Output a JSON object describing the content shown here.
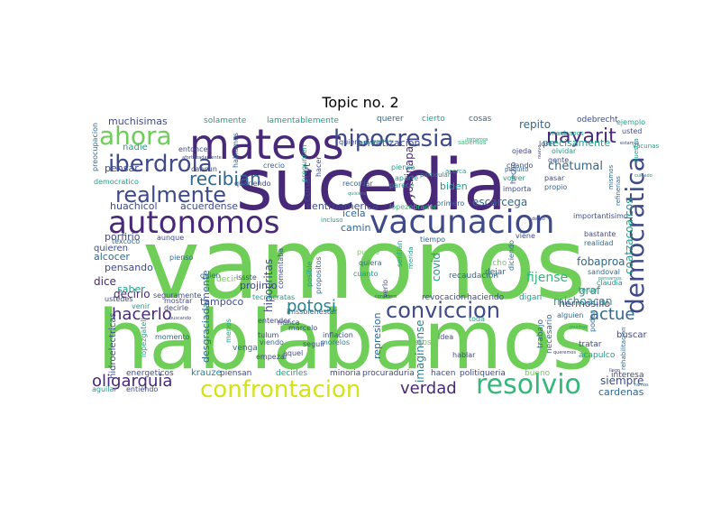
{
  "title": "Topic no. 2",
  "palette": [
    "#440154",
    "#482878",
    "#3e4a89",
    "#31688e",
    "#26828e",
    "#1f9e89",
    "#35b779",
    "#6ece58",
    "#b5de2b",
    "#d4e21a"
  ],
  "words": [
    {
      "text": "vamonos",
      "c": 7
    },
    {
      "text": "hablabamos",
      "c": 7
    },
    {
      "text": "sucedia",
      "c": 1
    },
    {
      "text": "autonomos",
      "c": 1
    },
    {
      "text": "vacunacion",
      "c": 2
    },
    {
      "text": "mateos",
      "c": 1
    },
    {
      "text": "realmente",
      "c": 2
    },
    {
      "text": "ahora",
      "c": 7
    },
    {
      "text": "hipocresia",
      "c": 2
    },
    {
      "text": "iberdrola",
      "c": 2
    },
    {
      "text": "nayarit",
      "c": 1
    },
    {
      "text": "democratica",
      "c": 2
    },
    {
      "text": "confrontacion",
      "c": 9
    },
    {
      "text": "resolvio",
      "c": 6
    },
    {
      "text": "conviccion",
      "c": 2
    },
    {
      "text": "oligarquia",
      "c": 1
    },
    {
      "text": "hacerlo",
      "c": 1
    },
    {
      "text": "potosi",
      "c": 4
    },
    {
      "text": "verdad",
      "c": 1
    },
    {
      "text": "actue",
      "c": 3
    },
    {
      "text": "recibian",
      "c": 3
    },
    {
      "text": "muchisimas",
      "c": 2
    },
    {
      "text": "solamente",
      "c": 5
    },
    {
      "text": "lamentablemente",
      "c": 5
    },
    {
      "text": "querer",
      "c": 3
    },
    {
      "text": "cierto",
      "c": 5
    },
    {
      "text": "cosas",
      "c": 3
    },
    {
      "text": "repito",
      "c": 3
    },
    {
      "text": "odebrecht",
      "c": 2
    },
    {
      "text": "ejemplo",
      "c": 5
    },
    {
      "text": "usted",
      "c": 2
    },
    {
      "text": "privatizacion",
      "c": 2
    },
    {
      "text": "precisamente",
      "c": 5
    },
    {
      "text": "chetumal",
      "c": 3
    },
    {
      "text": "conacyt",
      "c": 2
    },
    {
      "text": "ayotzinapa",
      "c": 1
    },
    {
      "text": "biden",
      "c": 5
    },
    {
      "text": "centroamerica",
      "c": 2
    },
    {
      "text": "escarcega",
      "c": 3
    },
    {
      "text": "coatzacoalcos",
      "c": 5
    },
    {
      "text": "icela",
      "c": 3
    },
    {
      "text": "camin",
      "c": 3
    },
    {
      "text": "huachicol",
      "c": 2
    },
    {
      "text": "acuerdense",
      "c": 2
    },
    {
      "text": "pensar",
      "c": 2
    },
    {
      "text": "nadie",
      "c": 5
    },
    {
      "text": "porfirio",
      "c": 2
    },
    {
      "text": "alcocer",
      "c": 3
    },
    {
      "text": "quieren",
      "c": 2
    },
    {
      "text": "pensando",
      "c": 2
    },
    {
      "text": "dice",
      "c": 1
    },
    {
      "text": "decirlo",
      "c": 1
    },
    {
      "text": "saber",
      "c": 5
    },
    {
      "text": "projimo",
      "c": 2
    },
    {
      "text": "tampoco",
      "c": 2
    },
    {
      "text": "hipocritas",
      "c": 2
    },
    {
      "text": "desgraciadamente",
      "c": 3
    },
    {
      "text": "represion",
      "c": 3
    },
    {
      "text": "covid",
      "c": 5
    },
    {
      "text": "fijense",
      "c": 6
    },
    {
      "text": "fobaproa",
      "c": 3
    },
    {
      "text": "graf",
      "c": 5
    },
    {
      "text": "michoacan",
      "c": 5
    },
    {
      "text": "hermosillo",
      "c": 2
    },
    {
      "text": "siempre",
      "c": 2
    },
    {
      "text": "cardenas",
      "c": 3
    },
    {
      "text": "interesa",
      "c": 2
    },
    {
      "text": "imaginense",
      "c": 4
    },
    {
      "text": "hidroelectricas",
      "c": 2
    },
    {
      "text": "energeticos",
      "c": 2
    },
    {
      "text": "krauze",
      "c": 4
    },
    {
      "text": "piensan",
      "c": 2
    },
    {
      "text": "decirles",
      "c": 5
    },
    {
      "text": "minoria",
      "c": 2
    },
    {
      "text": "procuraduria",
      "c": 2
    },
    {
      "text": "hacen",
      "c": 2
    },
    {
      "text": "politiqueria",
      "c": 2
    },
    {
      "text": "bueno",
      "c": 7
    },
    {
      "text": "aguilar",
      "c": 5
    },
    {
      "text": "entiendo",
      "c": 2
    },
    {
      "text": "venga",
      "c": 3
    },
    {
      "text": "empezar",
      "c": 2
    },
    {
      "text": "aquel",
      "c": 2
    },
    {
      "text": "seguir",
      "c": 2
    },
    {
      "text": "inflacion",
      "c": 2
    },
    {
      "text": "morelos",
      "c": 4
    },
    {
      "text": "lejos",
      "c": 7
    },
    {
      "text": "idea",
      "c": 2
    },
    {
      "text": "quiere",
      "c": 2
    },
    {
      "text": "revocacion",
      "c": 2
    },
    {
      "text": "haciendo",
      "c": 2
    },
    {
      "text": "digan",
      "c": 5
    },
    {
      "text": "trabajo",
      "c": 3
    },
    {
      "text": "necesario",
      "c": 3
    },
    {
      "text": "tratar",
      "c": 2
    },
    {
      "text": "buscar",
      "c": 2
    },
    {
      "text": "acapulco",
      "c": 5
    },
    {
      "text": "alguien",
      "c": 3
    },
    {
      "text": "recaudacion",
      "c": 3
    },
    {
      "text": "dejar",
      "c": 3
    },
    {
      "text": "dicho",
      "c": 7
    },
    {
      "text": "cuando",
      "c": 2
    },
    {
      "text": "hecho",
      "c": 2
    },
    {
      "text": "volver",
      "c": 5
    },
    {
      "text": "importa",
      "c": 2
    },
    {
      "text": "propio",
      "c": 3
    },
    {
      "text": "pasar",
      "c": 2
    },
    {
      "text": "primero",
      "c": 3
    },
    {
      "text": "importantisimo",
      "c": 2
    },
    {
      "text": "tiempo",
      "c": 3
    },
    {
      "text": "viene",
      "c": 2
    },
    {
      "text": "bastante",
      "c": 2
    },
    {
      "text": "realidad",
      "c": 3
    },
    {
      "text": "sandoval",
      "c": 3
    },
    {
      "text": "claudia",
      "c": 5
    },
    {
      "text": "rehabilitacion",
      "c": 3
    },
    {
      "text": "refinerias",
      "c": 3
    },
    {
      "text": "hacer",
      "c": 2
    },
    {
      "text": "recordar",
      "c": 3
    },
    {
      "text": "pregunten",
      "c": 5
    },
    {
      "text": "crecio",
      "c": 3
    },
    {
      "text": "queriendo",
      "c": 2
    },
    {
      "text": "hablamos",
      "c": 3
    },
    {
      "text": "cancun",
      "c": 2
    },
    {
      "text": "entonces",
      "c": 2
    },
    {
      "text": "democratico",
      "c": 5
    },
    {
      "text": "preocupacion",
      "c": 3
    },
    {
      "text": "piensa",
      "c": 5
    },
    {
      "text": "aparte",
      "c": 5
    },
    {
      "text": "parece",
      "c": 5
    },
    {
      "text": "ojeda",
      "c": 2
    },
    {
      "text": "olvidar",
      "c": 5
    },
    {
      "text": "gente",
      "c": 2
    },
    {
      "text": "loret",
      "c": 2
    },
    {
      "text": "texcoco",
      "c": 3
    },
    {
      "text": "aunque",
      "c": 2
    },
    {
      "text": "pienso",
      "c": 3
    },
    {
      "text": "quien",
      "c": 3
    },
    {
      "text": "mostrar",
      "c": 2
    },
    {
      "text": "decirle",
      "c": 2
    },
    {
      "text": "ustedes",
      "c": 2
    },
    {
      "text": "venir",
      "c": 5
    },
    {
      "text": "menos",
      "c": 5
    },
    {
      "text": "viendo",
      "c": 3
    },
    {
      "text": "tulum",
      "c": 2
    },
    {
      "text": "nunca",
      "c": 2
    },
    {
      "text": "marcelo",
      "c": 2
    },
    {
      "text": "entender",
      "c": 2
    },
    {
      "text": "comentaba",
      "c": 2
    },
    {
      "text": "propositos",
      "c": 3
    },
    {
      "text": "posible",
      "c": 5
    },
    {
      "text": "quiera",
      "c": 3
    },
    {
      "text": "cuanto",
      "c": 5
    },
    {
      "text": "verlo",
      "c": 2
    },
    {
      "text": "toda",
      "c": 5
    },
    {
      "text": "hablar",
      "c": 2
    },
    {
      "text": "poder",
      "c": 3
    },
    {
      "text": "tener",
      "c": 5
    },
    {
      "text": "momento",
      "c": 3
    },
    {
      "text": "lopezgatell",
      "c": 5
    },
    {
      "text": "issste",
      "c": 2
    },
    {
      "text": "decir",
      "c": 7
    },
    {
      "text": "seguramente",
      "c": 2
    },
    {
      "text": "tecnocratas",
      "c": 5
    },
    {
      "text": "imssbienestar",
      "c": 3
    },
    {
      "text": "sentian",
      "c": 5
    },
    {
      "text": "merida",
      "c": 5
    },
    {
      "text": "diciendo",
      "c": 3
    },
    {
      "text": "puede",
      "c": 7
    },
    {
      "text": "incluso",
      "c": 5
    },
    {
      "text": "lopezobrador",
      "c": 6
    },
    {
      "text": "acerca",
      "c": 5
    },
    {
      "text": "sabemos",
      "c": 6
    },
    {
      "text": "poquito",
      "c": 3
    },
    {
      "text": "particular",
      "c": 4
    },
    {
      "text": "mismos",
      "c": 3
    },
    {
      "text": "mexicanos",
      "c": 5
    },
    {
      "text": "nuestra",
      "c": 5
    },
    {
      "text": "vacunas",
      "c": 5
    },
    {
      "text": "deseo",
      "c": 2
    },
    {
      "text": "llego",
      "c": 2
    },
    {
      "text": "ramos",
      "c": 3
    },
    {
      "text": "considero",
      "c": 2
    },
    {
      "text": "afortunadamente",
      "c": 2
    },
    {
      "text": "buscando",
      "c": 2
    },
    {
      "text": "quisiera",
      "c": 5
    },
    {
      "text": "tomamos",
      "c": 5
    },
    {
      "text": "muchos",
      "c": 5
    },
    {
      "text": "queremos",
      "c": 2
    },
    {
      "text": "pensamos",
      "c": 5
    },
    {
      "text": "millones",
      "c": 5
    },
    {
      "text": "sirve",
      "c": 5
    },
    {
      "text": "estamos",
      "c": 2
    },
    {
      "text": "podemos",
      "c": 5
    },
    {
      "text": "cuidado",
      "c": 5
    },
    {
      "text": "nuevo",
      "c": 2
    }
  ]
}
